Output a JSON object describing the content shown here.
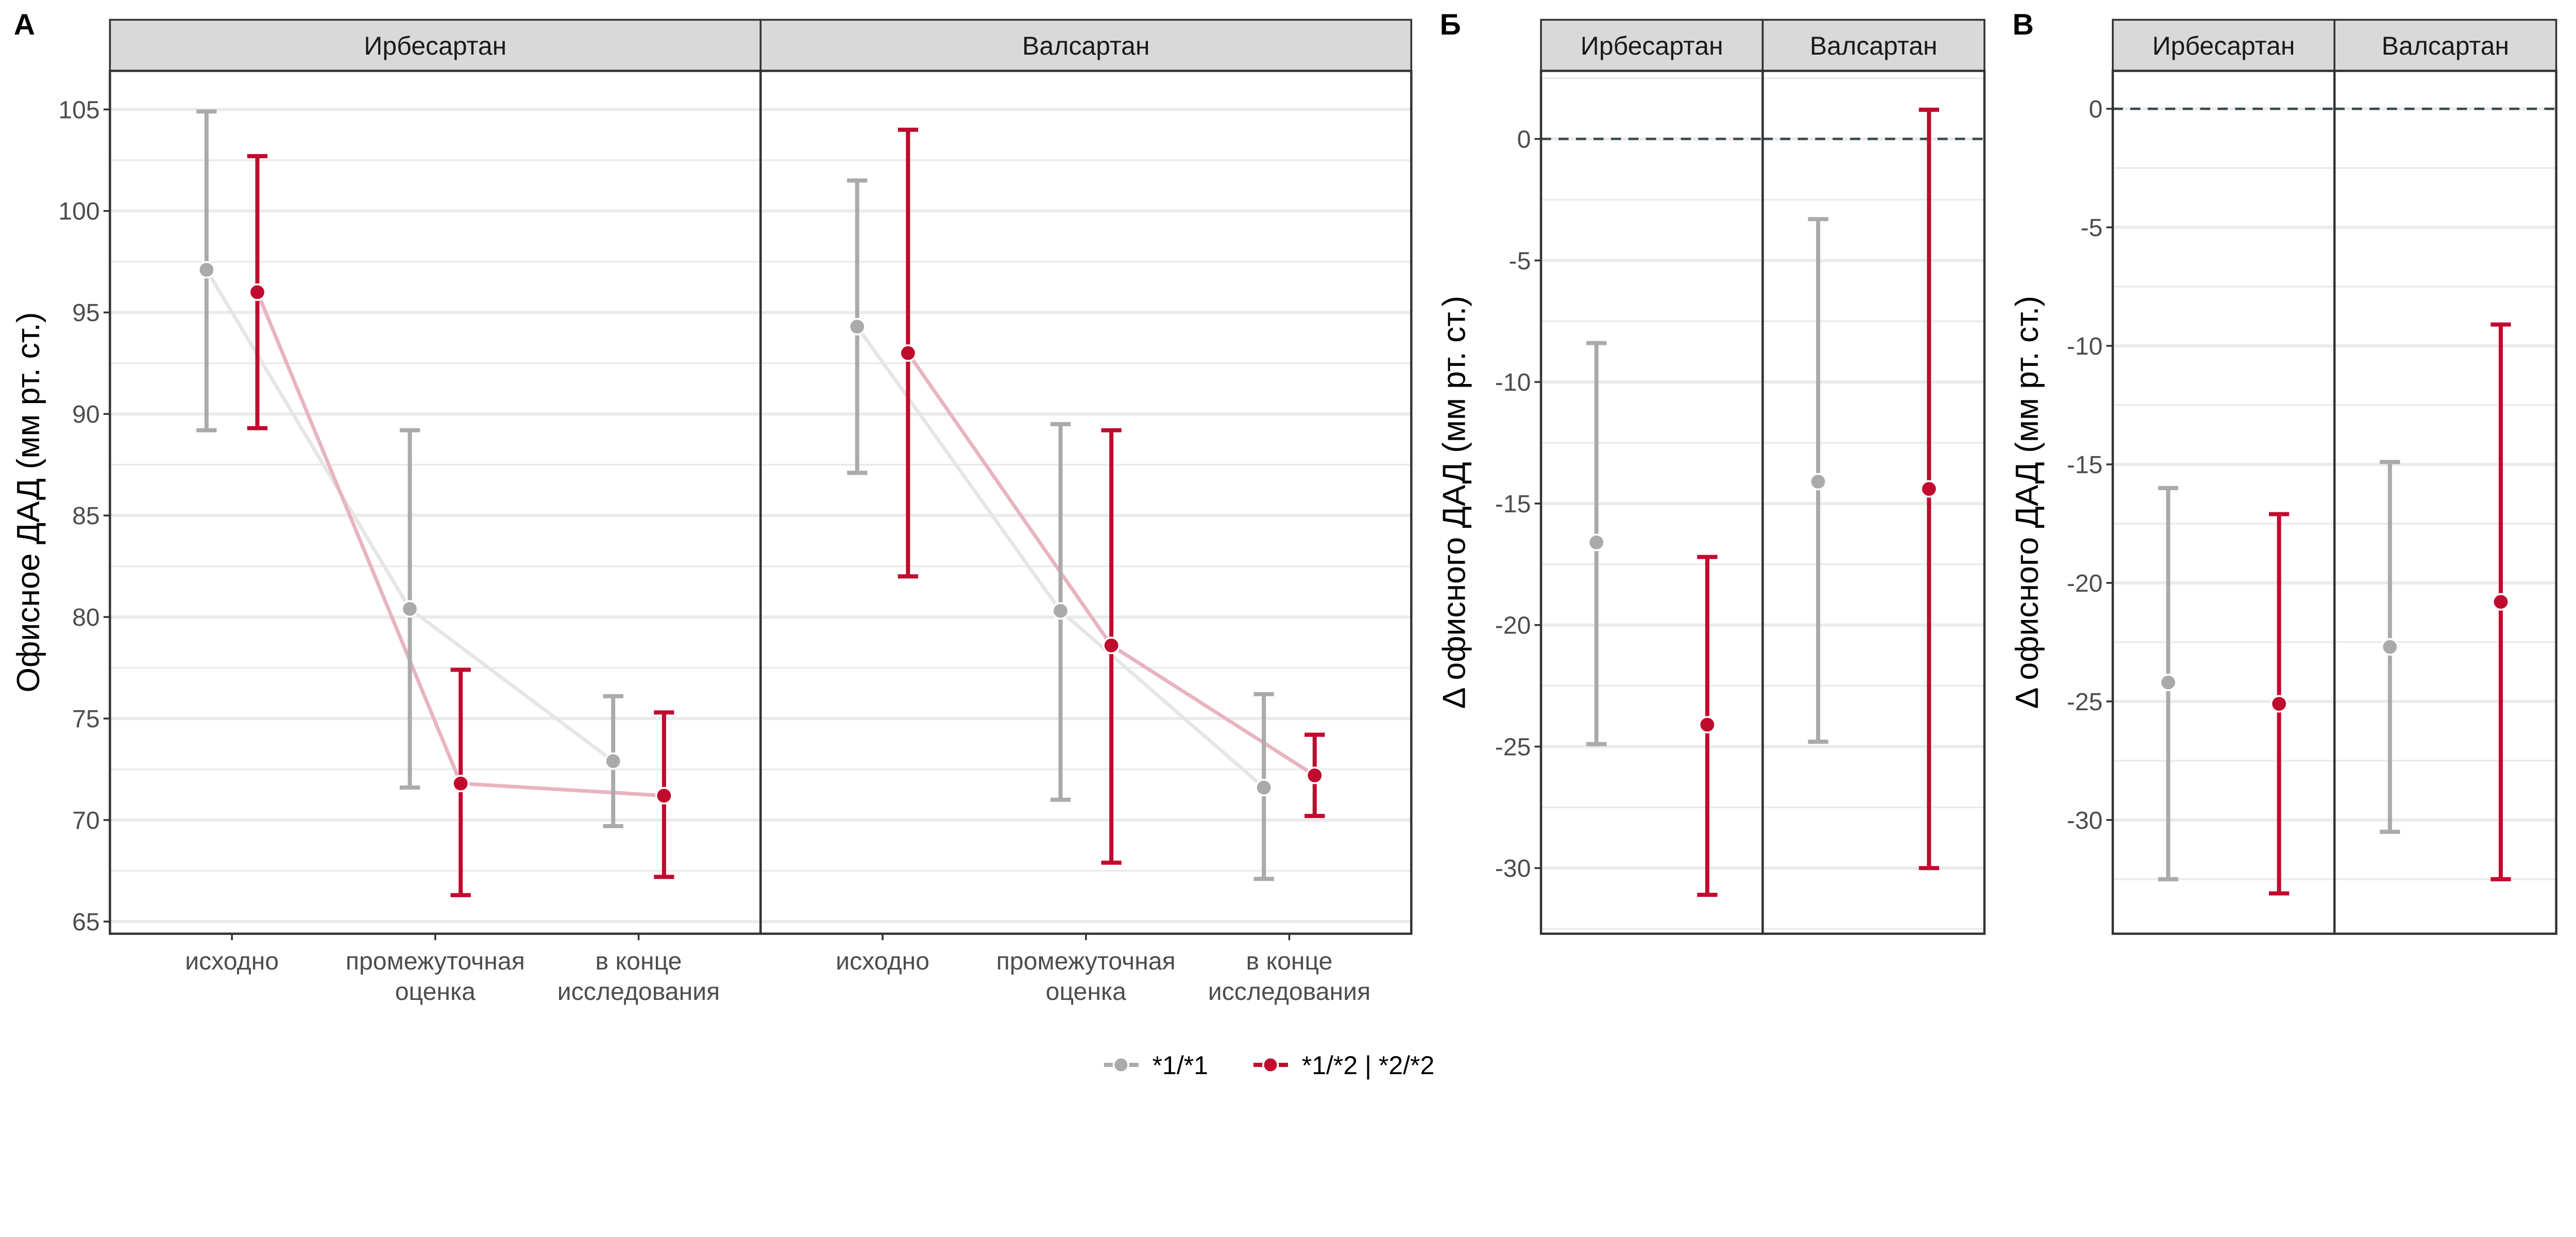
{
  "colors": {
    "allele_11": "#AAAAAA",
    "allele_12": "#C00A2E",
    "line_11": "#E6E6E6",
    "line_12": "#E8B4BF",
    "ref_line": "#37474F"
  },
  "legend": {
    "items": [
      {
        "label": "*1/*1",
        "color": "#AAAAAA"
      },
      {
        "label": "*1/*2 | *2/*2",
        "color": "#C00A2E"
      }
    ],
    "placement": "bottom"
  },
  "chart_data": [
    {
      "panel_label": "А",
      "type": "line",
      "ylabel": "Офисное ДАД (мм рт. ст.)",
      "ylim": [
        64.4,
        106.9
      ],
      "yticks": [
        65,
        70,
        75,
        80,
        85,
        90,
        95,
        100,
        105
      ],
      "categories": [
        "исходно",
        "промежуточная\nоценка",
        "в конце\nисследования"
      ],
      "grid": true,
      "facets": [
        {
          "name": "Ирбесартан",
          "series": [
            {
              "name": "*1/*1",
              "values": [
                97.1,
                80.4,
                72.9
              ],
              "lower": [
                89.2,
                71.6,
                69.7
              ],
              "upper": [
                104.9,
                89.2,
                76.1
              ]
            },
            {
              "name": "*1/*2 | *2/*2",
              "values": [
                96.0,
                71.8,
                71.2
              ],
              "lower": [
                89.3,
                66.3,
                67.2
              ],
              "upper": [
                102.7,
                77.4,
                75.3
              ]
            }
          ]
        },
        {
          "name": "Валсартан",
          "series": [
            {
              "name": "*1/*1",
              "values": [
                94.3,
                80.3,
                71.6
              ],
              "lower": [
                87.1,
                71.0,
                67.1
              ],
              "upper": [
                101.5,
                89.5,
                76.2
              ]
            },
            {
              "name": "*1/*2 | *2/*2",
              "values": [
                93.0,
                78.6,
                72.2
              ],
              "lower": [
                82.0,
                67.9,
                70.2
              ],
              "upper": [
                104.0,
                89.2,
                74.2
              ]
            }
          ]
        }
      ]
    },
    {
      "panel_label": "Б",
      "type": "scatter",
      "ylabel": "Δ офисного ДАД (мм рт. ст.)",
      "ylim": [
        -32.7,
        2.8
      ],
      "yticks": [
        -30,
        -25,
        -20,
        -15,
        -10,
        -5,
        0
      ],
      "reference_line": 0,
      "grid": true,
      "facets": [
        {
          "name": "Ирбесартан",
          "series": [
            {
              "name": "*1/*1",
              "values": [
                -16.6
              ],
              "lower": [
                -24.9
              ],
              "upper": [
                -8.4
              ]
            },
            {
              "name": "*1/*2 | *2/*2",
              "values": [
                -24.1
              ],
              "lower": [
                -31.1
              ],
              "upper": [
                -17.2
              ]
            }
          ]
        },
        {
          "name": "Валсартан",
          "series": [
            {
              "name": "*1/*1",
              "values": [
                -14.1
              ],
              "lower": [
                -24.8
              ],
              "upper": [
                -3.3
              ]
            },
            {
              "name": "*1/*2 | *2/*2",
              "values": [
                -14.4
              ],
              "lower": [
                -30.0
              ],
              "upper": [
                1.2
              ]
            }
          ]
        }
      ]
    },
    {
      "panel_label": "В",
      "type": "scatter",
      "ylabel": "Δ офисного ДАД (мм рт. ст.)",
      "ylim": [
        -34.8,
        1.6
      ],
      "yticks": [
        -30,
        -25,
        -20,
        -15,
        -10,
        -5,
        0
      ],
      "reference_line": 0,
      "grid": true,
      "facets": [
        {
          "name": "Ирбесартан",
          "series": [
            {
              "name": "*1/*1",
              "values": [
                -24.2
              ],
              "lower": [
                -32.5
              ],
              "upper": [
                -16.0
              ]
            },
            {
              "name": "*1/*2 | *2/*2",
              "values": [
                -25.1
              ],
              "lower": [
                -33.1
              ],
              "upper": [
                -17.1
              ]
            }
          ]
        },
        {
          "name": "Валсартан",
          "series": [
            {
              "name": "*1/*1",
              "values": [
                -22.7
              ],
              "lower": [
                -30.5
              ],
              "upper": [
                -14.9
              ]
            },
            {
              "name": "*1/*2 | *2/*2",
              "values": [
                -20.8
              ],
              "lower": [
                -32.5
              ],
              "upper": [
                -9.1
              ]
            }
          ]
        }
      ]
    }
  ]
}
